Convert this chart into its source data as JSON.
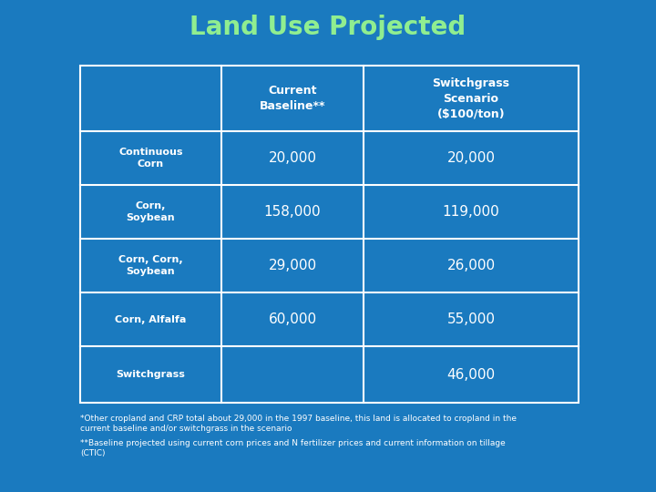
{
  "title": "Land Use Projected",
  "title_color": "#90ee90",
  "background_color": "#1a7abf",
  "cell_border_color": "#ffffff",
  "header_text_color": "#ffffff",
  "row_label_color": "#ffffff",
  "data_color": "#ffffff",
  "col_headers": [
    "Current\nBaseline**",
    "Switchgrass\nScenario\n($100/ton)"
  ],
  "row_labels": [
    "Continuous\nCorn",
    "Corn,\nSoybean",
    "Corn, Corn,\nSoybean",
    "Corn, Alfalfa",
    "Switchgrass"
  ],
  "data": [
    [
      "20,000",
      "20,000"
    ],
    [
      "158,000",
      "119,000"
    ],
    [
      "29,000",
      "26,000"
    ],
    [
      "60,000",
      "55,000"
    ],
    [
      "",
      "46,000"
    ]
  ],
  "footnote1": "*Other cropland and CRP total about 29,000 in the 1997 baseline, this land is allocated to cropland in the\ncurrent baseline and/or switchgrass in the scenario",
  "footnote2": "**Baseline projected using current corn prices and N fertilizer prices and current information on tillage\n(CTIC)"
}
